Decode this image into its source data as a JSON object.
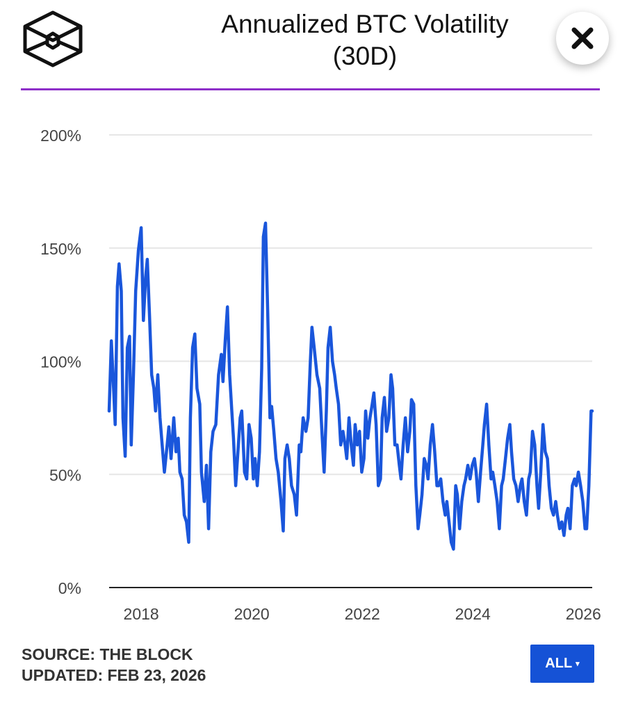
{
  "header": {
    "title_line1": "Annualized BTC Volatility",
    "title_line2": "(30D)",
    "logo": "the-block-hexagon-logo",
    "close_icon": "close-x-icon",
    "accent_color": "#8e2fc9"
  },
  "footer": {
    "source": "SOURCE: THE BLOCK",
    "updated": "UPDATED: FEB 23, 2026",
    "range_button": "ALL",
    "range_button_caret": "▾",
    "button_color": "#1552d6"
  },
  "chart_data": {
    "type": "line",
    "title": "Annualized BTC Volatility (30D)",
    "line_color": "#1a56db",
    "grid": true,
    "ylim": [
      0,
      200
    ],
    "yticks": [
      0,
      50,
      100,
      150,
      200
    ],
    "ytick_labels": [
      "0%",
      "50%",
      "100%",
      "150%",
      "200%"
    ],
    "xlim": [
      2017.42,
      2026.16
    ],
    "xticks": [
      2018,
      2020,
      2022,
      2024,
      2026
    ],
    "xtick_labels": [
      "2018",
      "2020",
      "2022",
      "2024",
      "2026"
    ],
    "points": [
      [
        2017.42,
        78
      ],
      [
        2017.46,
        109
      ],
      [
        2017.5,
        88
      ],
      [
        2017.53,
        72
      ],
      [
        2017.57,
        133
      ],
      [
        2017.6,
        143
      ],
      [
        2017.64,
        131
      ],
      [
        2017.67,
        75
      ],
      [
        2017.71,
        58
      ],
      [
        2017.75,
        106
      ],
      [
        2017.79,
        111
      ],
      [
        2017.82,
        63
      ],
      [
        2017.86,
        94
      ],
      [
        2017.9,
        131
      ],
      [
        2017.95,
        149
      ],
      [
        2018.0,
        159
      ],
      [
        2018.04,
        118
      ],
      [
        2018.08,
        137
      ],
      [
        2018.11,
        145
      ],
      [
        2018.15,
        121
      ],
      [
        2018.19,
        94
      ],
      [
        2018.23,
        88
      ],
      [
        2018.26,
        78
      ],
      [
        2018.3,
        94
      ],
      [
        2018.34,
        75
      ],
      [
        2018.38,
        63
      ],
      [
        2018.42,
        51
      ],
      [
        2018.47,
        63
      ],
      [
        2018.5,
        71
      ],
      [
        2018.54,
        57
      ],
      [
        2018.59,
        75
      ],
      [
        2018.63,
        60
      ],
      [
        2018.67,
        66
      ],
      [
        2018.7,
        51
      ],
      [
        2018.74,
        48
      ],
      [
        2018.78,
        32
      ],
      [
        2018.82,
        29
      ],
      [
        2018.86,
        20
      ],
      [
        2018.89,
        75
      ],
      [
        2018.93,
        106
      ],
      [
        2018.97,
        112
      ],
      [
        2019.01,
        88
      ],
      [
        2019.06,
        81
      ],
      [
        2019.09,
        51
      ],
      [
        2019.14,
        38
      ],
      [
        2019.18,
        54
      ],
      [
        2019.22,
        26
      ],
      [
        2019.26,
        60
      ],
      [
        2019.3,
        69
      ],
      [
        2019.35,
        72
      ],
      [
        2019.4,
        94
      ],
      [
        2019.45,
        103
      ],
      [
        2019.48,
        91
      ],
      [
        2019.52,
        109
      ],
      [
        2019.56,
        124
      ],
      [
        2019.6,
        94
      ],
      [
        2019.64,
        78
      ],
      [
        2019.67,
        66
      ],
      [
        2019.71,
        45
      ],
      [
        2019.75,
        60
      ],
      [
        2019.79,
        75
      ],
      [
        2019.82,
        78
      ],
      [
        2019.87,
        51
      ],
      [
        2019.91,
        48
      ],
      [
        2019.95,
        72
      ],
      [
        2019.99,
        66
      ],
      [
        2020.03,
        48
      ],
      [
        2020.06,
        57
      ],
      [
        2020.1,
        45
      ],
      [
        2020.14,
        60
      ],
      [
        2020.18,
        97
      ],
      [
        2020.21,
        155
      ],
      [
        2020.25,
        161
      ],
      [
        2020.29,
        121
      ],
      [
        2020.33,
        75
      ],
      [
        2020.36,
        80
      ],
      [
        2020.4,
        69
      ],
      [
        2020.44,
        57
      ],
      [
        2020.48,
        51
      ],
      [
        2020.53,
        38
      ],
      [
        2020.57,
        25
      ],
      [
        2020.6,
        57
      ],
      [
        2020.64,
        63
      ],
      [
        2020.68,
        57
      ],
      [
        2020.72,
        45
      ],
      [
        2020.77,
        41
      ],
      [
        2020.81,
        32
      ],
      [
        2020.86,
        63
      ],
      [
        2020.89,
        60
      ],
      [
        2020.93,
        75
      ],
      [
        2020.98,
        69
      ],
      [
        2021.02,
        75
      ],
      [
        2021.06,
        100
      ],
      [
        2021.09,
        115
      ],
      [
        2021.13,
        106
      ],
      [
        2021.18,
        94
      ],
      [
        2021.23,
        88
      ],
      [
        2021.27,
        69
      ],
      [
        2021.31,
        51
      ],
      [
        2021.35,
        78
      ],
      [
        2021.38,
        106
      ],
      [
        2021.42,
        115
      ],
      [
        2021.46,
        100
      ],
      [
        2021.5,
        94
      ],
      [
        2021.53,
        88
      ],
      [
        2021.57,
        81
      ],
      [
        2021.61,
        63
      ],
      [
        2021.65,
        69
      ],
      [
        2021.69,
        63
      ],
      [
        2021.72,
        57
      ],
      [
        2021.76,
        75
      ],
      [
        2021.8,
        63
      ],
      [
        2021.84,
        54
      ],
      [
        2021.87,
        72
      ],
      [
        2021.91,
        63
      ],
      [
        2021.95,
        69
      ],
      [
        2021.99,
        51
      ],
      [
        2022.03,
        57
      ],
      [
        2022.06,
        78
      ],
      [
        2022.1,
        66
      ],
      [
        2022.14,
        75
      ],
      [
        2022.18,
        81
      ],
      [
        2022.21,
        86
      ],
      [
        2022.25,
        72
      ],
      [
        2022.29,
        45
      ],
      [
        2022.33,
        48
      ],
      [
        2022.36,
        75
      ],
      [
        2022.4,
        84
      ],
      [
        2022.44,
        69
      ],
      [
        2022.48,
        75
      ],
      [
        2022.52,
        94
      ],
      [
        2022.55,
        88
      ],
      [
        2022.59,
        63
      ],
      [
        2022.63,
        63
      ],
      [
        2022.67,
        54
      ],
      [
        2022.7,
        48
      ],
      [
        2022.74,
        63
      ],
      [
        2022.78,
        75
      ],
      [
        2022.82,
        60
      ],
      [
        2022.86,
        69
      ],
      [
        2022.89,
        83
      ],
      [
        2022.93,
        81
      ],
      [
        2022.97,
        45
      ],
      [
        2023.01,
        26
      ],
      [
        2023.04,
        32
      ],
      [
        2023.08,
        41
      ],
      [
        2023.12,
        57
      ],
      [
        2023.16,
        54
      ],
      [
        2023.19,
        48
      ],
      [
        2023.23,
        63
      ],
      [
        2023.27,
        72
      ],
      [
        2023.31,
        60
      ],
      [
        2023.35,
        45
      ],
      [
        2023.38,
        45
      ],
      [
        2023.42,
        48
      ],
      [
        2023.46,
        38
      ],
      [
        2023.5,
        32
      ],
      [
        2023.53,
        38
      ],
      [
        2023.57,
        29
      ],
      [
        2023.61,
        20
      ],
      [
        2023.65,
        17
      ],
      [
        2023.69,
        45
      ],
      [
        2023.72,
        41
      ],
      [
        2023.76,
        26
      ],
      [
        2023.8,
        38
      ],
      [
        2023.84,
        45
      ],
      [
        2023.87,
        48
      ],
      [
        2023.91,
        54
      ],
      [
        2023.95,
        48
      ],
      [
        2023.99,
        54
      ],
      [
        2024.03,
        57
      ],
      [
        2024.06,
        51
      ],
      [
        2024.1,
        38
      ],
      [
        2024.14,
        51
      ],
      [
        2024.18,
        63
      ],
      [
        2024.21,
        72
      ],
      [
        2024.25,
        81
      ],
      [
        2024.29,
        63
      ],
      [
        2024.33,
        48
      ],
      [
        2024.36,
        51
      ],
      [
        2024.4,
        45
      ],
      [
        2024.44,
        38
      ],
      [
        2024.48,
        26
      ],
      [
        2024.52,
        45
      ],
      [
        2024.55,
        48
      ],
      [
        2024.59,
        57
      ],
      [
        2024.63,
        66
      ],
      [
        2024.67,
        72
      ],
      [
        2024.7,
        60
      ],
      [
        2024.74,
        48
      ],
      [
        2024.78,
        45
      ],
      [
        2024.82,
        38
      ],
      [
        2024.86,
        45
      ],
      [
        2024.89,
        48
      ],
      [
        2024.93,
        38
      ],
      [
        2024.97,
        32
      ],
      [
        2025.01,
        48
      ],
      [
        2025.04,
        51
      ],
      [
        2025.08,
        69
      ],
      [
        2025.12,
        63
      ],
      [
        2025.16,
        45
      ],
      [
        2025.19,
        35
      ],
      [
        2025.23,
        51
      ],
      [
        2025.27,
        72
      ],
      [
        2025.31,
        60
      ],
      [
        2025.35,
        57
      ],
      [
        2025.38,
        45
      ],
      [
        2025.42,
        35
      ],
      [
        2025.46,
        32
      ],
      [
        2025.5,
        38
      ],
      [
        2025.53,
        32
      ],
      [
        2025.57,
        26
      ],
      [
        2025.61,
        29
      ],
      [
        2025.65,
        23
      ],
      [
        2025.69,
        32
      ],
      [
        2025.72,
        35
      ],
      [
        2025.76,
        26
      ],
      [
        2025.8,
        45
      ],
      [
        2025.84,
        48
      ],
      [
        2025.87,
        45
      ],
      [
        2025.91,
        51
      ],
      [
        2025.95,
        45
      ],
      [
        2025.99,
        38
      ],
      [
        2026.03,
        26
      ],
      [
        2026.06,
        26
      ],
      [
        2026.1,
        45
      ],
      [
        2026.14,
        78
      ],
      [
        2026.16,
        78
      ]
    ]
  }
}
